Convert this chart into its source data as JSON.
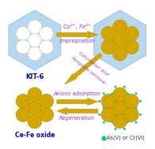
{
  "fig_width": 1.96,
  "fig_height": 1.89,
  "dpi": 100,
  "bg_color": "#ffffff",
  "hex_fill": "#b8d8f0",
  "hex_edge": "#98c4e8",
  "circle_white": "#ffffff",
  "circle_white_edge": "#c8c8c8",
  "circle_gold": "#d4a800",
  "circle_gold_edge": "#b89000",
  "arrow_gold_fill": "#d4a800",
  "arrow_gold_edge": "#b89000",
  "arrow_purple_text": "#9933cc",
  "label_kit6": "KIT-6",
  "label_cefe": "Ce-Fe oxide",
  "label_as": "As(V) or Cr(VI)",
  "label_impreg_top": "Ce³⁺, Fe³⁺",
  "label_impreg_bot": "Impregnation",
  "label_calcin1": "Calcination and",
  "label_calcin2": "Template removal",
  "label_anion": "Anions adsorption",
  "label_regen": "Regeneration",
  "dot_cyan": "#00cc99",
  "blue_label": "#0000bb"
}
